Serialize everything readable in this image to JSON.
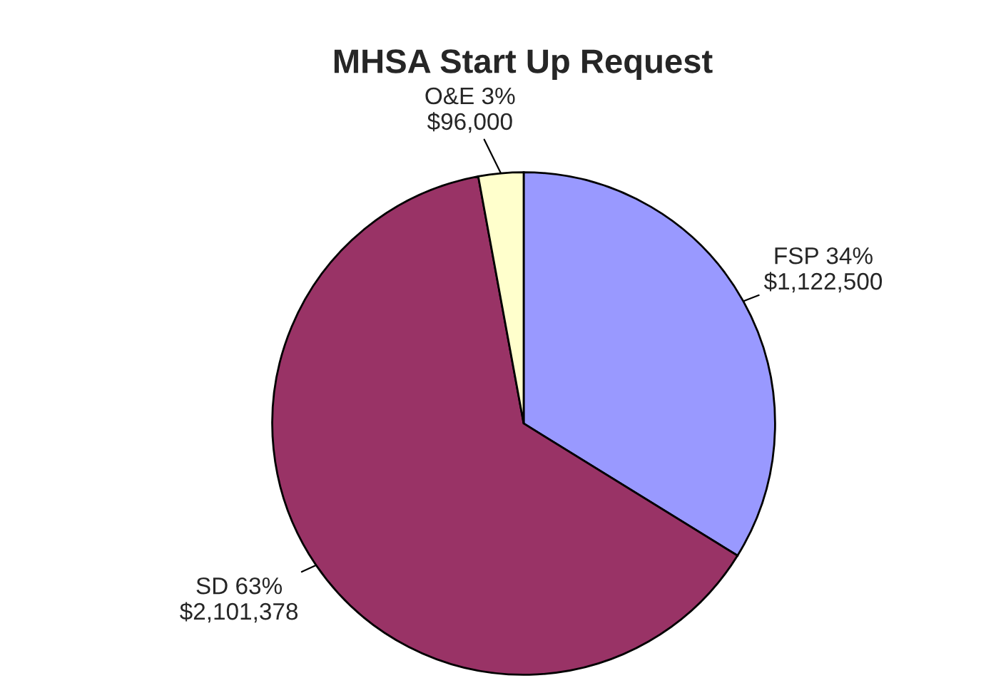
{
  "chart_data": {
    "type": "pie",
    "title": "MHSA Start Up Request",
    "categories": [
      "FSP",
      "SD",
      "O&E"
    ],
    "values": [
      1122500,
      2101378,
      96000
    ],
    "value_labels": [
      "34%\n$1,122,500",
      "63%\n$2,101,378",
      "3%\n$96,000"
    ],
    "colors": [
      "#9999ff",
      "#993366",
      "#ffffcc"
    ],
    "legend": false
  }
}
